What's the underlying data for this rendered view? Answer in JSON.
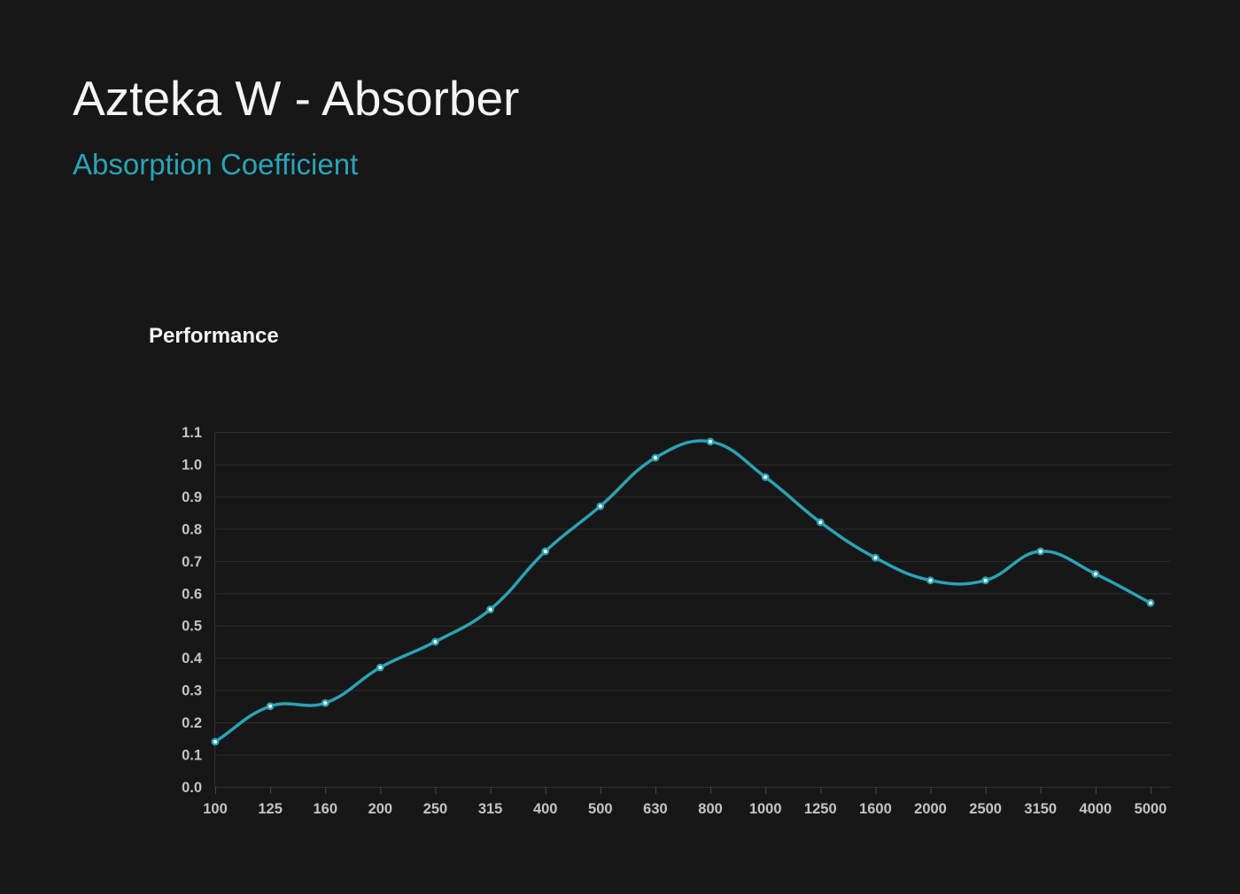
{
  "page": {
    "title": "Azteka W - Absorber",
    "subtitle": "Absorption Coefficient"
  },
  "chart_data": {
    "type": "line",
    "title": "Performance",
    "x_categories": [
      "100",
      "125",
      "160",
      "200",
      "250",
      "315",
      "400",
      "500",
      "630",
      "800",
      "1000",
      "1250",
      "1600",
      "2000",
      "2500",
      "3150",
      "4000",
      "5000"
    ],
    "values": [
      0.14,
      0.25,
      0.26,
      0.37,
      0.45,
      0.55,
      0.73,
      0.87,
      1.02,
      1.07,
      0.96,
      0.82,
      0.71,
      0.64,
      0.64,
      0.73,
      0.66,
      0.57
    ],
    "ylim": [
      0.0,
      1.1
    ],
    "ytick_step": 0.1,
    "grid": true,
    "legend_position": "none",
    "xlabel": "",
    "ylabel": "",
    "colors": {
      "line": "#2ba2b6",
      "point_fill": "#ffffff",
      "grid": "#2e2e2e",
      "axis": "#2e2e2e",
      "tick_mark": "#4a4a4a",
      "tick_text": "#c4c4c4",
      "background": "#171717",
      "title_text": "#f4f4f4",
      "subtitle_text": "#2aa3b8",
      "chart_title_text": "#f5f5f5"
    }
  }
}
